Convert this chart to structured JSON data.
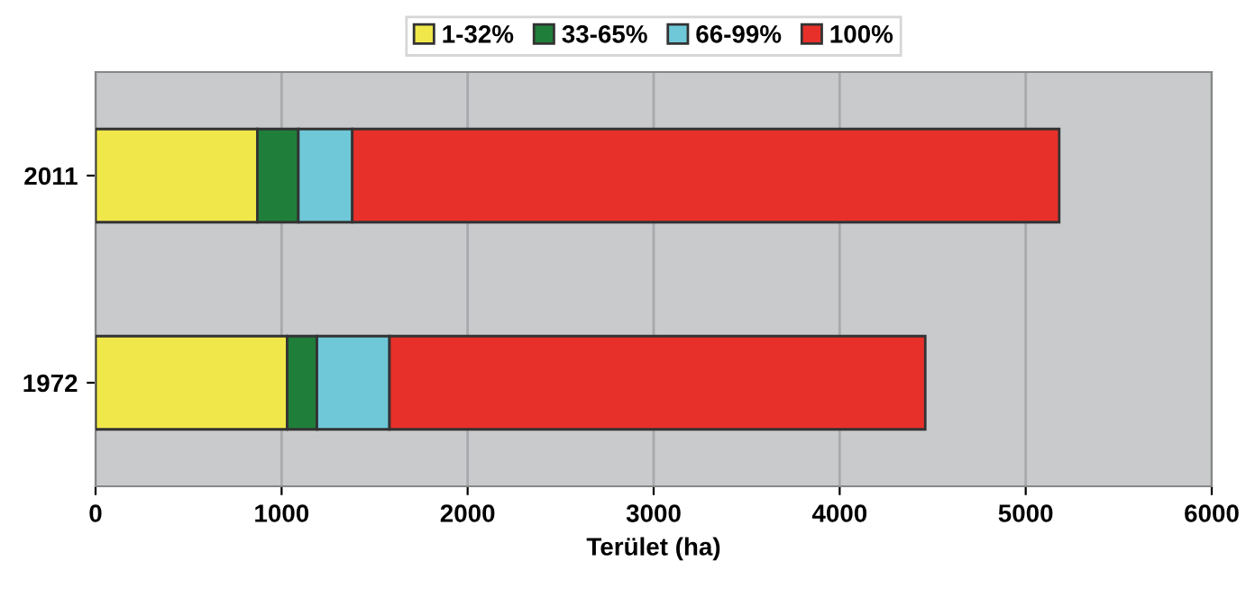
{
  "chart_data": {
    "type": "bar",
    "orientation": "horizontal",
    "stacked": true,
    "xlabel": "Terület (ha)",
    "categories": [
      "2011",
      "1972"
    ],
    "series": [
      {
        "name": "1-32%",
        "color": "#f0e84a",
        "values": [
          870,
          1030
        ]
      },
      {
        "name": "33-65%",
        "color": "#1f7f3a",
        "values": [
          220,
          160
        ]
      },
      {
        "name": "66-99%",
        "color": "#6fc8d8",
        "values": [
          290,
          390
        ]
      },
      {
        "name": "100%",
        "color": "#e8302a",
        "values": [
          3800,
          2880
        ]
      }
    ],
    "xlim": [
      0,
      6000
    ],
    "xticks": [
      0,
      1000,
      2000,
      3000,
      4000,
      5000,
      6000
    ],
    "grid": "x",
    "legend": "top"
  }
}
